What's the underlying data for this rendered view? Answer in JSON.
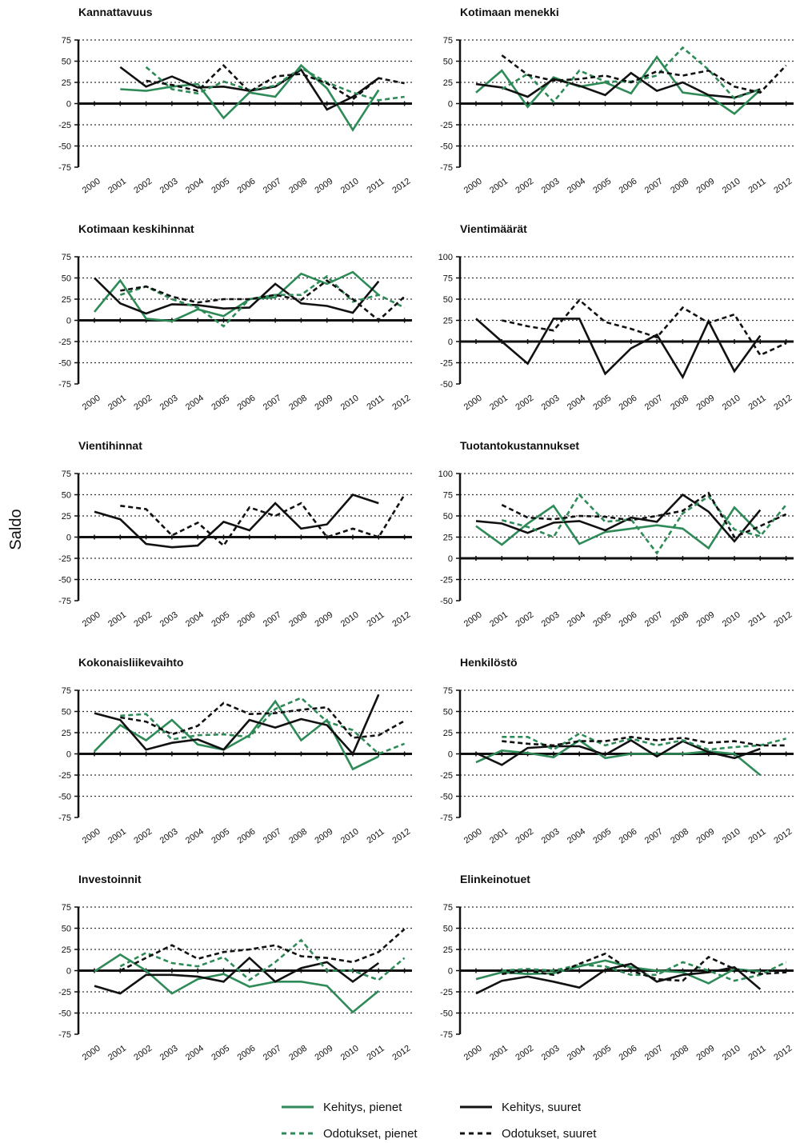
{
  "figure": {
    "ylabel": "Saldo",
    "colors": {
      "green": "#2e8b57",
      "black": "#111111"
    },
    "legend": [
      {
        "label": "Kehitys, pienet",
        "color": "#2e8b57",
        "dashed": false
      },
      {
        "label": "Kehitys, suuret",
        "color": "#111111",
        "dashed": false
      },
      {
        "label": "Odotukset, pienet",
        "color": "#2e8b57",
        "dashed": true
      },
      {
        "label": "Odotukset, suuret",
        "color": "#111111",
        "dashed": true
      }
    ]
  },
  "chart_data": [
    {
      "type": "line",
      "title": "Kannattavuus",
      "x": [
        "2000",
        "2001",
        "2002",
        "2003",
        "2004",
        "2005",
        "2006",
        "2007",
        "2008",
        "2009",
        "2010",
        "2011",
        "2012"
      ],
      "ylim": [
        -75,
        75
      ],
      "yticks": [
        75,
        50,
        25,
        0,
        -25,
        -50,
        -75
      ],
      "grid": "dotted",
      "series": [
        {
          "name": "Kehitys, pienet",
          "values": [
            null,
            17,
            15,
            20,
            23,
            -17,
            13,
            8,
            45,
            18,
            -31,
            16,
            null
          ]
        },
        {
          "name": "Kehitys, suuret",
          "values": [
            null,
            43,
            20,
            32,
            19,
            20,
            15,
            20,
            40,
            -7,
            8,
            30,
            null
          ]
        },
        {
          "name": "Odotukset, pienet",
          "values": [
            null,
            null,
            43,
            17,
            12,
            26,
            16,
            21,
            42,
            25,
            13,
            4,
            8
          ]
        },
        {
          "name": "Odotukset, suuret",
          "values": [
            null,
            null,
            27,
            22,
            15,
            45,
            14,
            32,
            35,
            24,
            5,
            30,
            24
          ]
        }
      ]
    },
    {
      "type": "line",
      "title": "Kotimaan menekki",
      "x": [
        "2000",
        "2001",
        "2002",
        "2003",
        "2004",
        "2005",
        "2006",
        "2007",
        "2008",
        "2009",
        "2010",
        "2011",
        "2012"
      ],
      "ylim": [
        -75,
        75
      ],
      "yticks": [
        75,
        50,
        25,
        0,
        -25,
        -50,
        -75
      ],
      "grid": "dotted",
      "series": [
        {
          "name": "Kehitys, pienet",
          "values": [
            13,
            39,
            -4,
            31,
            20,
            25,
            12,
            55,
            13,
            9,
            -12,
            16,
            null
          ]
        },
        {
          "name": "Kehitys, suuret",
          "values": [
            23,
            19,
            8,
            29,
            21,
            10,
            36,
            15,
            25,
            10,
            7,
            17,
            null
          ]
        },
        {
          "name": "Odotukset, pienet",
          "values": [
            null,
            17,
            35,
            2,
            39,
            26,
            26,
            33,
            66,
            40,
            6,
            17,
            null
          ]
        },
        {
          "name": "Odotukset, suuret",
          "values": [
            null,
            57,
            34,
            27,
            29,
            33,
            25,
            38,
            33,
            39,
            20,
            13,
            45
          ]
        }
      ]
    },
    {
      "type": "line",
      "title": "Kotimaan keskihinnat",
      "x": [
        "2000",
        "2001",
        "2002",
        "2003",
        "2004",
        "2005",
        "2006",
        "2007",
        "2008",
        "2009",
        "2010",
        "2011",
        "2012"
      ],
      "ylim": [
        -75,
        75
      ],
      "yticks": [
        75,
        50,
        25,
        0,
        -25,
        -50,
        -75
      ],
      "grid": "dotted",
      "series": [
        {
          "name": "Kehitys, pienet",
          "values": [
            10,
            47,
            2,
            -1,
            13,
            5,
            25,
            27,
            55,
            43,
            57,
            30,
            null
          ]
        },
        {
          "name": "Kehitys, suuret",
          "values": [
            50,
            20,
            8,
            19,
            18,
            14,
            15,
            43,
            20,
            17,
            9,
            46,
            null
          ]
        },
        {
          "name": "Odotukset, pienet",
          "values": [
            null,
            30,
            40,
            25,
            15,
            -7,
            25,
            30,
            30,
            52,
            22,
            30,
            15
          ]
        },
        {
          "name": "Odotukset, suuret",
          "values": [
            null,
            35,
            40,
            28,
            21,
            25,
            25,
            30,
            24,
            47,
            25,
            0,
            28
          ]
        }
      ]
    },
    {
      "type": "line",
      "title": "Vientimäärät",
      "x": [
        "2000",
        "2001",
        "2002",
        "2003",
        "2004",
        "2005",
        "2006",
        "2007",
        "2008",
        "2009",
        "2010",
        "2011",
        "2012"
      ],
      "ylim": [
        -50,
        100
      ],
      "yticks": [
        100,
        75,
        50,
        25,
        0,
        -25,
        -50
      ],
      "grid": "dotted",
      "series": [
        {
          "name": "Kehitys, suuret",
          "values": [
            27,
            0,
            -26,
            27,
            27,
            -38,
            -8,
            8,
            -42,
            24,
            -35,
            7,
            null
          ]
        },
        {
          "name": "Odotukset, suuret",
          "values": [
            null,
            25,
            18,
            13,
            49,
            23,
            15,
            5,
            40,
            22,
            32,
            -16,
            -2
          ]
        }
      ]
    },
    {
      "type": "line",
      "title": "Vientihinnat",
      "x": [
        "2000",
        "2001",
        "2002",
        "2003",
        "2004",
        "2005",
        "2006",
        "2007",
        "2008",
        "2009",
        "2010",
        "2011",
        "2012"
      ],
      "ylim": [
        -75,
        75
      ],
      "yticks": [
        75,
        50,
        25,
        0,
        -25,
        -50,
        -75
      ],
      "grid": "dotted",
      "series": [
        {
          "name": "Kehitys, suuret",
          "values": [
            30,
            21,
            -8,
            -12,
            -10,
            18,
            8,
            40,
            10,
            15,
            50,
            40,
            null
          ]
        },
        {
          "name": "Odotukset, suuret",
          "values": [
            null,
            37,
            33,
            2,
            17,
            -10,
            35,
            25,
            40,
            0,
            10,
            0,
            50
          ]
        }
      ]
    },
    {
      "type": "line",
      "title": "Tuotantokustannukset",
      "x": [
        "2000",
        "2001",
        "2002",
        "2003",
        "2004",
        "2005",
        "2006",
        "2007",
        "2008",
        "2009",
        "2010",
        "2011",
        "2012"
      ],
      "ylim": [
        -50,
        100
      ],
      "yticks": [
        100,
        75,
        50,
        25,
        0,
        -25,
        -50
      ],
      "grid": "dotted",
      "series": [
        {
          "name": "Kehitys, pienet",
          "values": [
            38,
            16,
            41,
            62,
            17,
            31,
            35,
            39,
            35,
            12,
            60,
            29,
            null
          ]
        },
        {
          "name": "Kehitys, suuret",
          "values": [
            44,
            41,
            30,
            42,
            44,
            33,
            48,
            43,
            75,
            55,
            20,
            57,
            null
          ]
        },
        {
          "name": "Odotukset, pienet",
          "values": [
            null,
            45,
            37,
            25,
            75,
            43,
            46,
            6,
            53,
            73,
            34,
            26,
            63
          ]
        },
        {
          "name": "Odotukset, suuret",
          "values": [
            null,
            63,
            48,
            46,
            50,
            49,
            45,
            50,
            56,
            77,
            25,
            38,
            52
          ]
        }
      ]
    },
    {
      "type": "line",
      "title": "Kokonaisliikevaihto",
      "x": [
        "2000",
        "2001",
        "2002",
        "2003",
        "2004",
        "2005",
        "2006",
        "2007",
        "2008",
        "2009",
        "2010",
        "2011",
        "2012"
      ],
      "ylim": [
        -75,
        75
      ],
      "yticks": [
        75,
        50,
        25,
        0,
        -25,
        -50,
        -75
      ],
      "grid": "dotted",
      "series": [
        {
          "name": "Kehitys, pienet",
          "values": [
            3,
            34,
            16,
            40,
            11,
            5,
            22,
            62,
            16,
            40,
            -18,
            -3,
            null
          ]
        },
        {
          "name": "Kehitys, suuret",
          "values": [
            48,
            40,
            5,
            13,
            17,
            5,
            40,
            31,
            41,
            34,
            0,
            70,
            null
          ]
        },
        {
          "name": "Odotukset, pienet",
          "values": [
            null,
            45,
            47,
            17,
            22,
            23,
            20,
            53,
            66,
            38,
            28,
            0,
            12
          ]
        },
        {
          "name": "Odotukset, suuret",
          "values": [
            null,
            43,
            38,
            23,
            33,
            60,
            47,
            48,
            52,
            55,
            19,
            22,
            39
          ]
        }
      ]
    },
    {
      "type": "line",
      "title": "Henkilöstö",
      "x": [
        "2000",
        "2001",
        "2002",
        "2003",
        "2004",
        "2005",
        "2006",
        "2007",
        "2008",
        "2009",
        "2010",
        "2011",
        "2012"
      ],
      "ylim": [
        -75,
        75
      ],
      "yticks": [
        75,
        50,
        25,
        0,
        -25,
        -50,
        -75
      ],
      "grid": "dotted",
      "series": [
        {
          "name": "Kehitys, pienet",
          "values": [
            -10,
            4,
            1,
            -4,
            16,
            -5,
            0,
            0,
            0,
            3,
            0,
            -25,
            null
          ]
        },
        {
          "name": "Kehitys, suuret",
          "values": [
            1,
            -13,
            7,
            9,
            9,
            -1,
            16,
            -3,
            15,
            2,
            -5,
            6,
            null
          ]
        },
        {
          "name": "Odotukset, pienet",
          "values": [
            null,
            20,
            20,
            5,
            24,
            10,
            18,
            10,
            16,
            5,
            8,
            10,
            18
          ]
        },
        {
          "name": "Odotukset, suuret",
          "values": [
            null,
            15,
            12,
            10,
            15,
            15,
            20,
            16,
            19,
            13,
            15,
            10,
            10
          ]
        }
      ]
    },
    {
      "type": "line",
      "title": "Investoinnit",
      "x": [
        "2000",
        "2001",
        "2002",
        "2003",
        "2004",
        "2005",
        "2006",
        "2007",
        "2008",
        "2009",
        "2010",
        "2011",
        "2012"
      ],
      "ylim": [
        -75,
        75
      ],
      "yticks": [
        75,
        50,
        25,
        0,
        -25,
        -50,
        -75
      ],
      "grid": "dotted",
      "series": [
        {
          "name": "Kehitys, pienet",
          "values": [
            -1,
            19,
            0,
            -27,
            -10,
            -4,
            -19,
            -13,
            -13,
            -18,
            -49,
            -24,
            null
          ]
        },
        {
          "name": "Kehitys, suuret",
          "values": [
            -18,
            -27,
            -5,
            -5,
            -7,
            -13,
            15,
            -13,
            3,
            10,
            -13,
            9,
            null
          ]
        },
        {
          "name": "Odotukset, pienet",
          "values": [
            null,
            5,
            21,
            9,
            5,
            16,
            -11,
            10,
            36,
            0,
            0,
            -11,
            15
          ]
        },
        {
          "name": "Odotukset, suuret",
          "values": [
            null,
            0,
            15,
            30,
            14,
            22,
            25,
            30,
            17,
            15,
            10,
            22,
            49
          ]
        }
      ]
    },
    {
      "type": "line",
      "title": "Elinkeinotuet",
      "x": [
        "2000",
        "2001",
        "2002",
        "2003",
        "2004",
        "2005",
        "2006",
        "2007",
        "2008",
        "2009",
        "2010",
        "2011",
        "2012"
      ],
      "ylim": [
        -75,
        75
      ],
      "yticks": [
        75,
        50,
        25,
        0,
        -25,
        -50,
        -75
      ],
      "grid": "dotted",
      "series": [
        {
          "name": "Kehitys, pienet",
          "values": [
            -10,
            -2,
            -4,
            -3,
            5,
            12,
            4,
            0,
            -2,
            -15,
            2,
            -1,
            null
          ]
        },
        {
          "name": "Kehitys, suuret",
          "values": [
            -27,
            -12,
            -7,
            -13,
            -20,
            1,
            8,
            -13,
            -5,
            -2,
            4,
            -22,
            null
          ]
        },
        {
          "name": "Odotukset, pienet",
          "values": [
            null,
            0,
            2,
            0,
            7,
            5,
            -5,
            -5,
            10,
            0,
            -12,
            -5,
            10
          ]
        },
        {
          "name": "Odotukset, suuret",
          "values": [
            null,
            -4,
            0,
            -5,
            8,
            20,
            0,
            -10,
            -12,
            16,
            2,
            -4,
            -2
          ]
        }
      ]
    }
  ]
}
